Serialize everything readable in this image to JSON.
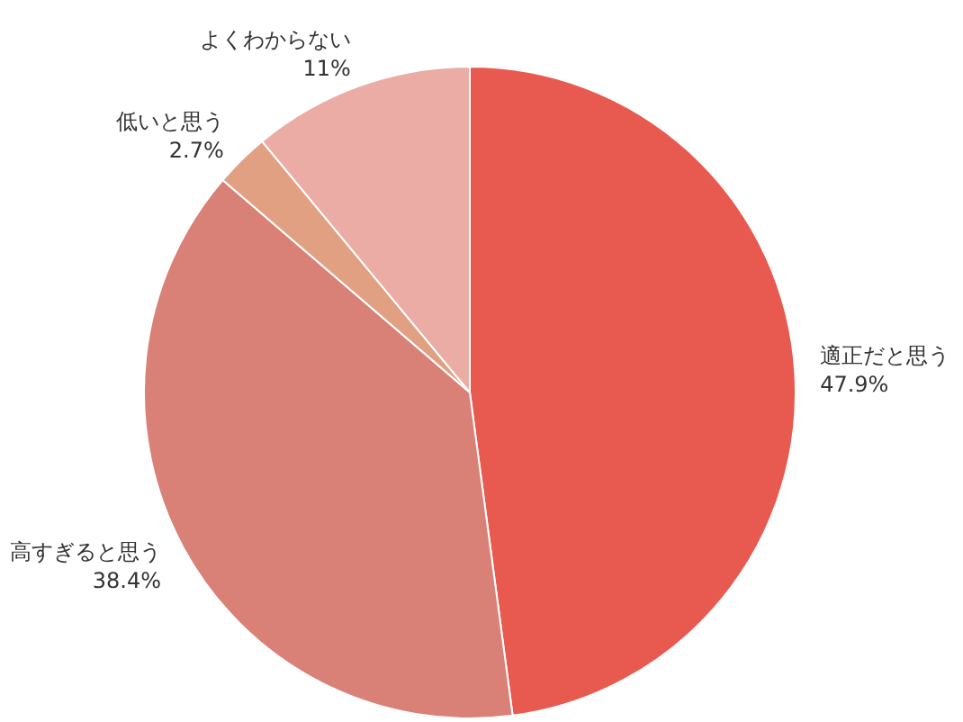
{
  "chart_data": {
    "type": "pie",
    "categories": [
      "適正だと思う",
      "高すぎると思う",
      "低いと思う",
      "よくわからない"
    ],
    "values": [
      47.9,
      38.4,
      2.7,
      11
    ],
    "value_labels": [
      "47.9%",
      "38.4%",
      "2.7%",
      "11%"
    ],
    "colors": [
      "#e85a4f",
      "#d98077",
      "#e2a083",
      "#ebaca5"
    ]
  }
}
